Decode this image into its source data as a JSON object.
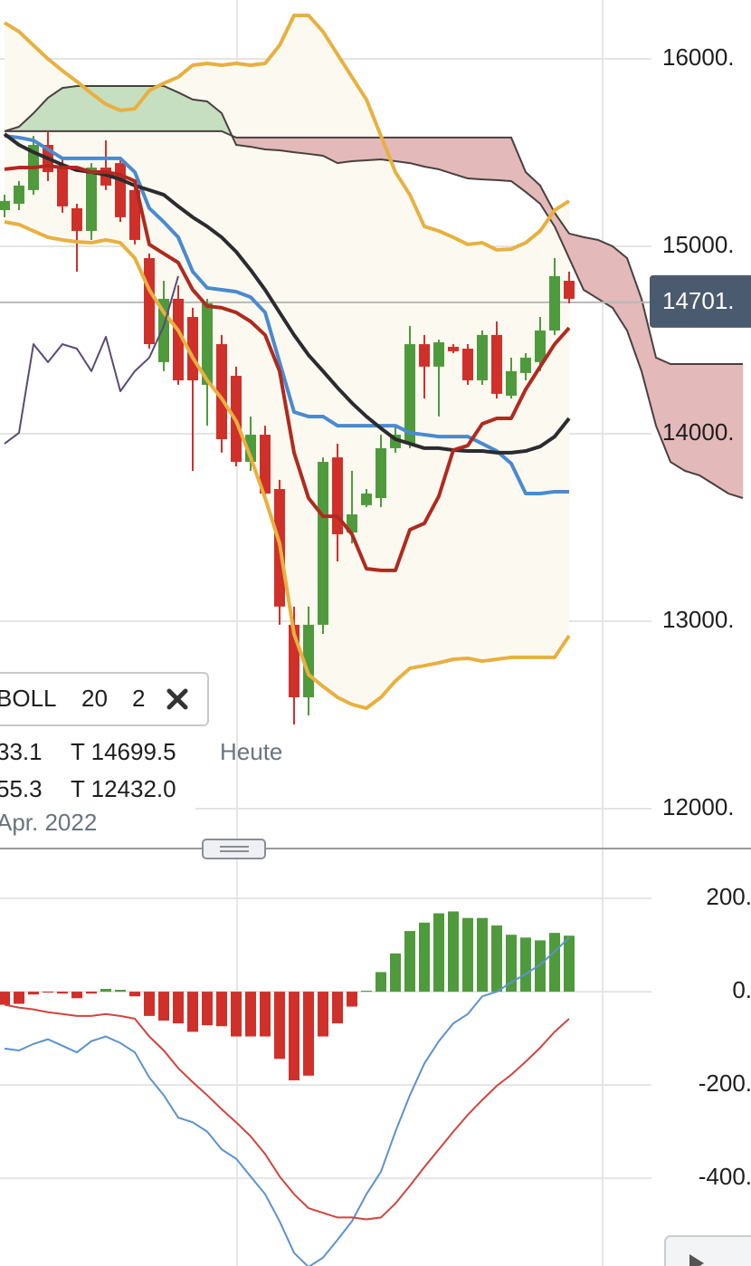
{
  "chart_data": [
    {
      "type": "candlestick",
      "ylim": [
        11797,
        16314
      ],
      "yticks": [
        {
          "value": 16000,
          "label": "16000."
        },
        {
          "value": 15000,
          "label": "15000."
        },
        {
          "value": 14000,
          "label": "14000."
        },
        {
          "value": 13000,
          "label": "13000."
        },
        {
          "value": 12000,
          "label": "12000."
        }
      ],
      "grid": true,
      "last_price": {
        "value": 14701,
        "label": "14701."
      },
      "indicator": {
        "name": "BOLL",
        "period": 20,
        "deviation": 2
      },
      "info": [
        [
          "33.1",
          "T 14699.5",
          "Heute"
        ],
        [
          "55.3",
          "T 12432.0"
        ],
        [
          "Apr. 2022"
        ]
      ],
      "candles": {
        "up_color": "#4f9a3c",
        "down_color": "#d0302a",
        "open": [
          15193,
          15227,
          15300,
          15541,
          15420,
          15203,
          15082,
          15420,
          15444,
          15300,
          14937,
          14382,
          14720,
          14623,
          14261,
          14478,
          14309,
          13850,
          13995,
          13705,
          12981,
          12594,
          12981,
          13874,
          13473,
          13619,
          13657,
          13923,
          13947,
          14478,
          14358,
          14464,
          14454,
          14285,
          14527,
          14203,
          14324,
          14382,
          14551,
          14816
        ],
        "high": [
          15275,
          15348,
          15589,
          15614,
          15469,
          15227,
          15444,
          15565,
          15469,
          15348,
          14961,
          14816,
          14792,
          14672,
          14720,
          14527,
          14358,
          14092,
          14043,
          13754,
          13078,
          13078,
          13874,
          13947,
          13802,
          13705,
          13995,
          14043,
          14575,
          14527,
          14502,
          14478,
          14478,
          14551,
          14599,
          14406,
          14430,
          14623,
          14937,
          14865
        ],
        "low": [
          15155,
          15193,
          15275,
          15348,
          15179,
          14865,
          15034,
          15300,
          15130,
          15010,
          14454,
          14334,
          14261,
          13802,
          14043,
          13899,
          13826,
          13802,
          13657,
          12981,
          12449,
          12497,
          12932,
          13319,
          13415,
          13609,
          13609,
          13899,
          13923,
          14188,
          14092,
          14430,
          14261,
          14261,
          14188,
          14188,
          14285,
          14334,
          14527,
          14696
        ],
        "close": [
          15242,
          15324,
          15541,
          15396,
          15213,
          15082,
          15420,
          15324,
          15155,
          15034,
          14478,
          14720,
          14285,
          14285,
          14696,
          13971,
          13850,
          13995,
          13681,
          13078,
          12594,
          12981,
          13850,
          13464,
          13570,
          13681,
          13923,
          13995,
          14478,
          14358,
          14488,
          14440,
          14285,
          14527,
          14213,
          14334,
          14406,
          14551,
          14841,
          14720
        ]
      },
      "band": {
        "fill": "#fcfaf0",
        "upper": [
          16193,
          16145,
          16072,
          16000,
          15937,
          15879,
          15816,
          15758,
          15725,
          15734,
          15831,
          15870,
          15903,
          15966,
          15976,
          15966,
          15976,
          15966,
          15976,
          16072,
          16232,
          16232,
          16145,
          16024,
          15903,
          15783,
          15589,
          15396,
          15275,
          15106,
          15082,
          15048,
          15010,
          15019,
          14981,
          14985,
          15019,
          15082,
          15193,
          15242
        ],
        "lower": [
          15130,
          15116,
          15082,
          15048,
          15034,
          15024,
          15019,
          15034,
          15019,
          14937,
          14768,
          14647,
          14551,
          14406,
          14285,
          14188,
          14068,
          13874,
          13657,
          13415,
          12932,
          12715,
          12652,
          12594,
          12556,
          12536,
          12594,
          12681,
          12749,
          12763,
          12778,
          12797,
          12802,
          12787,
          12797,
          12807,
          12807,
          12807,
          12807,
          12923
        ],
        "color": "#e8b040"
      },
      "cloud": {
        "up_color": "#c6dfc0",
        "down_color": "#e3b9b9",
        "edge_color": "#4a4040",
        "span_a": [
          15614,
          15638,
          15710,
          15792,
          15845,
          15855,
          15855,
          15855,
          15855,
          15855,
          15855,
          15855,
          15821,
          15783,
          15773,
          15710,
          15541,
          15531,
          15517,
          15512,
          15502,
          15493,
          15483,
          15444,
          15454,
          15459,
          15464,
          15454,
          15444,
          15425,
          15411,
          15386,
          15362,
          15357,
          15353,
          15348,
          15290,
          15227,
          15106,
          14937,
          14768,
          14720,
          14672,
          14551,
          14334,
          14043,
          13850,
          13802,
          13778,
          13730,
          13681,
          13657
        ],
        "span_b": [
          15614,
          15614,
          15614,
          15614,
          15614,
          15614,
          15614,
          15614,
          15614,
          15614,
          15614,
          15614,
          15614,
          15614,
          15614,
          15614,
          15580,
          15580,
          15580,
          15580,
          15580,
          15580,
          15580,
          15580,
          15580,
          15580,
          15580,
          15580,
          15580,
          15580,
          15580,
          15580,
          15580,
          15580,
          15580,
          15580,
          15396,
          15324,
          15179,
          15068,
          15049,
          15034,
          15000,
          14937,
          14720,
          14406,
          14372,
          14372,
          14372,
          14372,
          14372,
          14372
        ]
      },
      "series": [
        {
          "color": "#4a8ad0",
          "values": [
            15589,
            15580,
            15565,
            15517,
            15469,
            15469,
            15469,
            15469,
            15469,
            15396,
            15203,
            15130,
            15048,
            14865,
            14778,
            14768,
            14758,
            14729,
            14647,
            14382,
            14116,
            14092,
            14092,
            14043,
            14043,
            14043,
            14043,
            14043,
            14005,
            13995,
            13985,
            13985,
            13985,
            13947,
            13908,
            13841,
            13681,
            13681,
            13691,
            13691
          ]
        },
        {
          "color": "#2b2b30",
          "values": [
            15599,
            15541,
            15502,
            15469,
            15435,
            15406,
            15396,
            15382,
            15357,
            15324,
            15300,
            15275,
            15213,
            15155,
            15106,
            15048,
            14971,
            14874,
            14768,
            14647,
            14527,
            14420,
            14334,
            14246,
            14164,
            14092,
            14029,
            13971,
            13947,
            13923,
            13923,
            13913,
            13908,
            13908,
            13899,
            13899,
            13908,
            13932,
            13985,
            14082
          ]
        },
        {
          "color": "#b02a20",
          "values": [
            15411,
            15420,
            15420,
            15430,
            15420,
            15420,
            15396,
            15396,
            15382,
            15348,
            15010,
            14961,
            14913,
            14768,
            14681,
            14672,
            14647,
            14599,
            14527,
            14334,
            13899,
            13657,
            13560,
            13560,
            13464,
            13280,
            13271,
            13271,
            13488,
            13522,
            13667,
            13913,
            13937,
            14053,
            14082,
            14082,
            14237,
            14358,
            14478,
            14565
          ]
        },
        {
          "color": "#5a4a78",
          "values": [
            13947,
            14005,
            14478,
            14382,
            14478,
            14454,
            14334,
            14517,
            14227,
            14334,
            14406,
            14575,
            14841,
            null,
            null,
            null,
            null,
            null,
            null,
            null,
            null,
            null,
            null,
            null,
            null,
            null,
            null,
            null,
            null,
            null,
            null,
            null,
            null,
            null,
            null,
            null,
            null,
            null,
            null,
            null
          ]
        }
      ]
    },
    {
      "type": "macd",
      "ylim": [
        -588,
        301
      ],
      "yticks": [
        {
          "value": 200,
          "label": "200."
        },
        {
          "value": 0,
          "label": "0."
        },
        {
          "value": -200,
          "label": "-200."
        },
        {
          "value": -400,
          "label": "-400."
        }
      ],
      "grid": true,
      "histogram": {
        "up_color": "#4f9a3c",
        "down_color": "#d0302a",
        "values": [
          -28,
          -26,
          -6,
          -2,
          -4,
          -14,
          -4,
          6,
          4,
          -10,
          -52,
          -62,
          -68,
          -86,
          -72,
          -74,
          -96,
          -96,
          -96,
          -144,
          -190,
          -180,
          -96,
          -68,
          -32,
          2,
          42,
          82,
          130,
          148,
          168,
          172,
          158,
          158,
          142,
          122,
          116,
          110,
          126,
          120
        ]
      },
      "series": [
        {
          "color": "#5b93cc",
          "values": [
            -122,
            -126,
            -112,
            -102,
            -116,
            -130,
            -106,
            -96,
            -110,
            -130,
            -184,
            -222,
            -270,
            -280,
            -300,
            -338,
            -358,
            -396,
            -434,
            -492,
            -560,
            -590,
            -570,
            -532,
            -492,
            -434,
            -386,
            -300,
            -222,
            -154,
            -106,
            -68,
            -48,
            -10,
            0,
            20,
            38,
            58,
            86,
            116
          ]
        },
        {
          "color": "#d0453c",
          "values": [
            -28,
            -34,
            -38,
            -44,
            -48,
            -52,
            -52,
            -48,
            -52,
            -58,
            -96,
            -126,
            -164,
            -194,
            -222,
            -252,
            -280,
            -310,
            -348,
            -396,
            -434,
            -464,
            -474,
            -484,
            -484,
            -488,
            -484,
            -454,
            -416,
            -376,
            -338,
            -300,
            -264,
            -232,
            -202,
            -178,
            -150,
            -120,
            -86,
            -58
          ]
        }
      ]
    }
  ]
}
